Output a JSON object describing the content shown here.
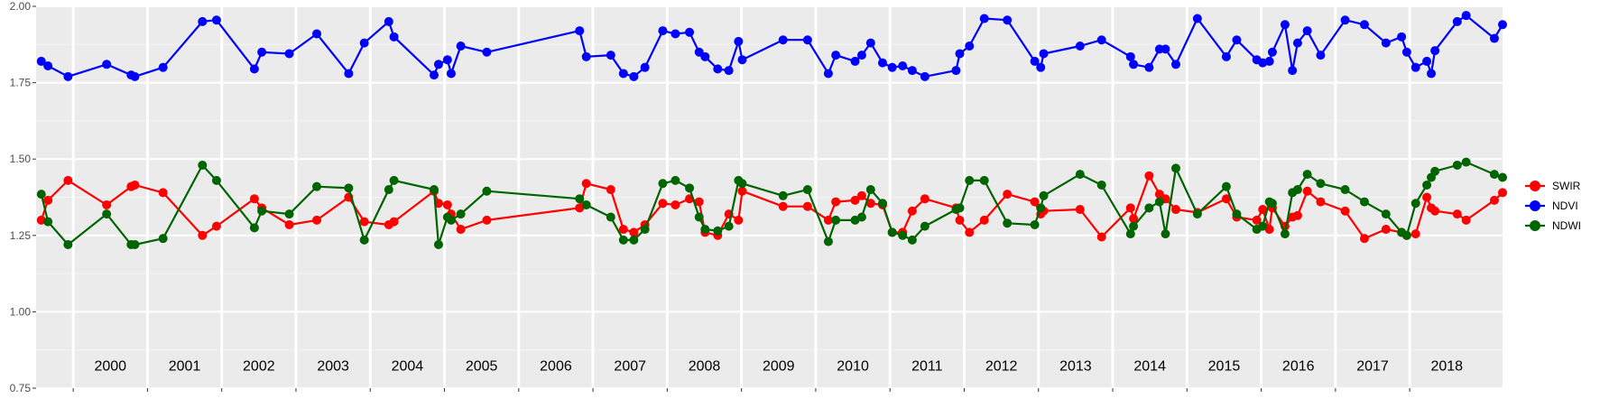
{
  "chart_data": {
    "type": "line",
    "ylim": [
      0.75,
      2.0
    ],
    "xlim": [
      1999.5,
      2019.25
    ],
    "y_ticks": [
      {
        "v": 0.75,
        "label": "0.75"
      },
      {
        "v": 1.0,
        "label": "1.00"
      },
      {
        "v": 1.25,
        "label": "1.25"
      },
      {
        "v": 1.5,
        "label": "1.50"
      },
      {
        "v": 1.75,
        "label": "1.75"
      },
      {
        "v": 2.0,
        "label": "2.00"
      }
    ],
    "year_panels": [
      {
        "start": 2000,
        "label": "2000"
      },
      {
        "start": 2001,
        "label": "2001"
      },
      {
        "start": 2002,
        "label": "2002"
      },
      {
        "start": 2003,
        "label": "2003"
      },
      {
        "start": 2004,
        "label": "2004"
      },
      {
        "start": 2005,
        "label": "2005"
      },
      {
        "start": 2006,
        "label": "2006"
      },
      {
        "start": 2007,
        "label": "2007"
      },
      {
        "start": 2008,
        "label": "2008"
      },
      {
        "start": 2009,
        "label": "2009"
      },
      {
        "start": 2010,
        "label": "2010"
      },
      {
        "start": 2011,
        "label": "2011"
      },
      {
        "start": 2012,
        "label": "2012"
      },
      {
        "start": 2013,
        "label": "2013"
      },
      {
        "start": 2014,
        "label": "2014"
      },
      {
        "start": 2015,
        "label": "2015"
      },
      {
        "start": 2016,
        "label": "2016"
      },
      {
        "start": 2017,
        "label": "2017"
      },
      {
        "start": 2018,
        "label": "2018"
      }
    ],
    "legend_position": "right",
    "grid": true,
    "background": "#ebebeb",
    "x": [
      1999.57,
      1999.66,
      1999.93,
      2000.45,
      2000.78,
      2000.83,
      2001.21,
      2001.74,
      2001.93,
      2002.44,
      2002.54,
      2002.91,
      2003.28,
      2003.71,
      2003.92,
      2004.25,
      2004.32,
      2004.86,
      2004.92,
      2005.04,
      2005.09,
      2005.22,
      2005.57,
      2006.82,
      2006.91,
      2007.24,
      2007.41,
      2007.55,
      2007.7,
      2007.94,
      2008.11,
      2008.3,
      2008.43,
      2008.51,
      2008.68,
      2008.83,
      2008.96,
      2009.01,
      2009.56,
      2009.89,
      2010.17,
      2010.27,
      2010.53,
      2010.62,
      2010.74,
      2010.9,
      2011.03,
      2011.17,
      2011.3,
      2011.47,
      2011.89,
      2011.94,
      2012.07,
      2012.27,
      2012.58,
      2012.95,
      2013.03,
      2013.07,
      2013.56,
      2013.85,
      2014.24,
      2014.28,
      2014.49,
      2014.63,
      2014.71,
      2014.85,
      2015.14,
      2015.53,
      2015.67,
      2015.94,
      2016.02,
      2016.11,
      2016.15,
      2016.32,
      2016.42,
      2016.49,
      2016.62,
      2016.8,
      2017.13,
      2017.39,
      2017.68,
      2017.89,
      2017.96,
      2018.08,
      2018.23,
      2018.29,
      2018.34,
      2018.64,
      2018.76,
      2019.14,
      2019.25
    ],
    "series": [
      {
        "name": "SWIR",
        "color": "#ff0000",
        "values": [
          1.3,
          1.365,
          1.43,
          1.35,
          1.41,
          1.415,
          1.39,
          1.25,
          1.28,
          1.37,
          1.34,
          1.285,
          1.3,
          1.375,
          1.295,
          1.285,
          1.295,
          1.395,
          1.355,
          1.35,
          1.32,
          1.27,
          1.3,
          1.34,
          1.42,
          1.4,
          1.27,
          1.26,
          1.285,
          1.355,
          1.35,
          1.37,
          1.36,
          1.26,
          1.25,
          1.32,
          1.3,
          1.395,
          1.345,
          1.345,
          1.3,
          1.36,
          1.365,
          1.38,
          1.355,
          1.35,
          1.26,
          1.26,
          1.33,
          1.37,
          1.34,
          1.3,
          1.26,
          1.3,
          1.385,
          1.36,
          1.32,
          1.33,
          1.335,
          1.245,
          1.34,
          1.305,
          1.445,
          1.385,
          1.37,
          1.335,
          1.325,
          1.37,
          1.31,
          1.3,
          1.335,
          1.27,
          1.34,
          1.28,
          1.31,
          1.315,
          1.395,
          1.36,
          1.33,
          1.24,
          1.27,
          1.26,
          1.25,
          1.255,
          1.375,
          1.34,
          1.33,
          1.32,
          1.3,
          1.365,
          1.39
        ]
      },
      {
        "name": "NDVI",
        "color": "#0000ff",
        "values": [
          1.82,
          1.805,
          1.77,
          1.81,
          1.775,
          1.77,
          1.8,
          1.95,
          1.955,
          1.795,
          1.85,
          1.845,
          1.91,
          1.78,
          1.88,
          1.95,
          1.9,
          1.775,
          1.81,
          1.825,
          1.78,
          1.87,
          1.85,
          1.92,
          1.835,
          1.84,
          1.78,
          1.77,
          1.8,
          1.92,
          1.91,
          1.915,
          1.85,
          1.835,
          1.795,
          1.79,
          1.885,
          1.825,
          1.89,
          1.89,
          1.78,
          1.84,
          1.82,
          1.84,
          1.88,
          1.815,
          1.8,
          1.805,
          1.79,
          1.77,
          1.79,
          1.845,
          1.87,
          1.96,
          1.955,
          1.82,
          1.8,
          1.845,
          1.87,
          1.89,
          1.835,
          1.81,
          1.8,
          1.86,
          1.86,
          1.81,
          1.96,
          1.835,
          1.89,
          1.825,
          1.815,
          1.82,
          1.85,
          1.94,
          1.79,
          1.88,
          1.92,
          1.84,
          1.955,
          1.94,
          1.88,
          1.9,
          1.85,
          1.8,
          1.82,
          1.78,
          1.855,
          1.95,
          1.97,
          1.895,
          1.94
        ]
      },
      {
        "name": "NDWI",
        "color": "#006400",
        "values": [
          1.385,
          1.295,
          1.22,
          1.32,
          1.22,
          1.22,
          1.24,
          1.48,
          1.43,
          1.275,
          1.33,
          1.32,
          1.41,
          1.405,
          1.235,
          1.4,
          1.43,
          1.4,
          1.22,
          1.31,
          1.3,
          1.32,
          1.395,
          1.37,
          1.35,
          1.31,
          1.235,
          1.235,
          1.27,
          1.42,
          1.43,
          1.405,
          1.31,
          1.27,
          1.265,
          1.28,
          1.43,
          1.42,
          1.38,
          1.4,
          1.23,
          1.3,
          1.3,
          1.31,
          1.4,
          1.355,
          1.26,
          1.25,
          1.235,
          1.28,
          1.335,
          1.34,
          1.43,
          1.43,
          1.29,
          1.285,
          1.34,
          1.38,
          1.45,
          1.415,
          1.255,
          1.28,
          1.34,
          1.36,
          1.255,
          1.47,
          1.32,
          1.41,
          1.32,
          1.27,
          1.28,
          1.36,
          1.355,
          1.255,
          1.39,
          1.4,
          1.45,
          1.42,
          1.4,
          1.36,
          1.32,
          1.26,
          1.25,
          1.355,
          1.415,
          1.44,
          1.46,
          1.48,
          1.49,
          1.45,
          1.44
        ]
      }
    ]
  }
}
